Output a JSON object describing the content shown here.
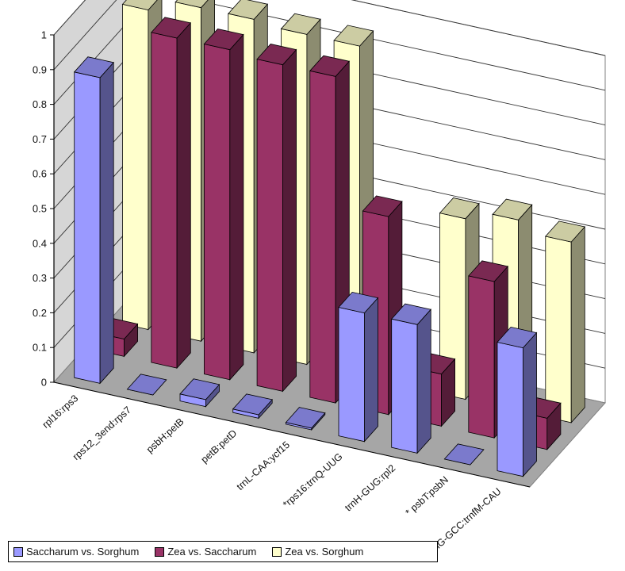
{
  "chart_data": {
    "type": "bar",
    "categories": [
      "rpl16:rps3",
      "rps12_3end:rps7",
      "psbH:petB",
      "petB:petD",
      "trnL-CAA:ycf15",
      "*rps16:trnQ-UUG",
      "trnH-GUG:rpl2",
      "* psbT:psbN",
      "*trnG-GCC:trnfM-CAU"
    ],
    "series": [
      {
        "name": "Saccharum vs. Sorghum",
        "color": "#9a99ff",
        "values": [
          0.88,
          0.0,
          0.02,
          0.01,
          0.005,
          0.37,
          0.37,
          0.0,
          0.37
        ]
      },
      {
        "name": "Zea vs. Saccharum",
        "color": "#993366",
        "values": [
          0.05,
          0.95,
          0.95,
          0.94,
          0.94,
          0.57,
          0.15,
          0.45,
          0.09
        ]
      },
      {
        "name": "Zea vs. Sorghum",
        "color": "#ffffcc",
        "values": [
          0.92,
          0.96,
          0.96,
          0.95,
          0.95,
          0.16,
          0.52,
          0.55,
          0.52
        ]
      }
    ],
    "ylim": [
      0,
      1
    ],
    "yticks": [
      "0",
      "0.1",
      "0.2",
      "0.3",
      "0.4",
      "0.5",
      "0.6",
      "0.7",
      "0.8",
      "0.9",
      "1"
    ],
    "grid": true,
    "legend": "bottom-left",
    "style": "3d-column"
  }
}
